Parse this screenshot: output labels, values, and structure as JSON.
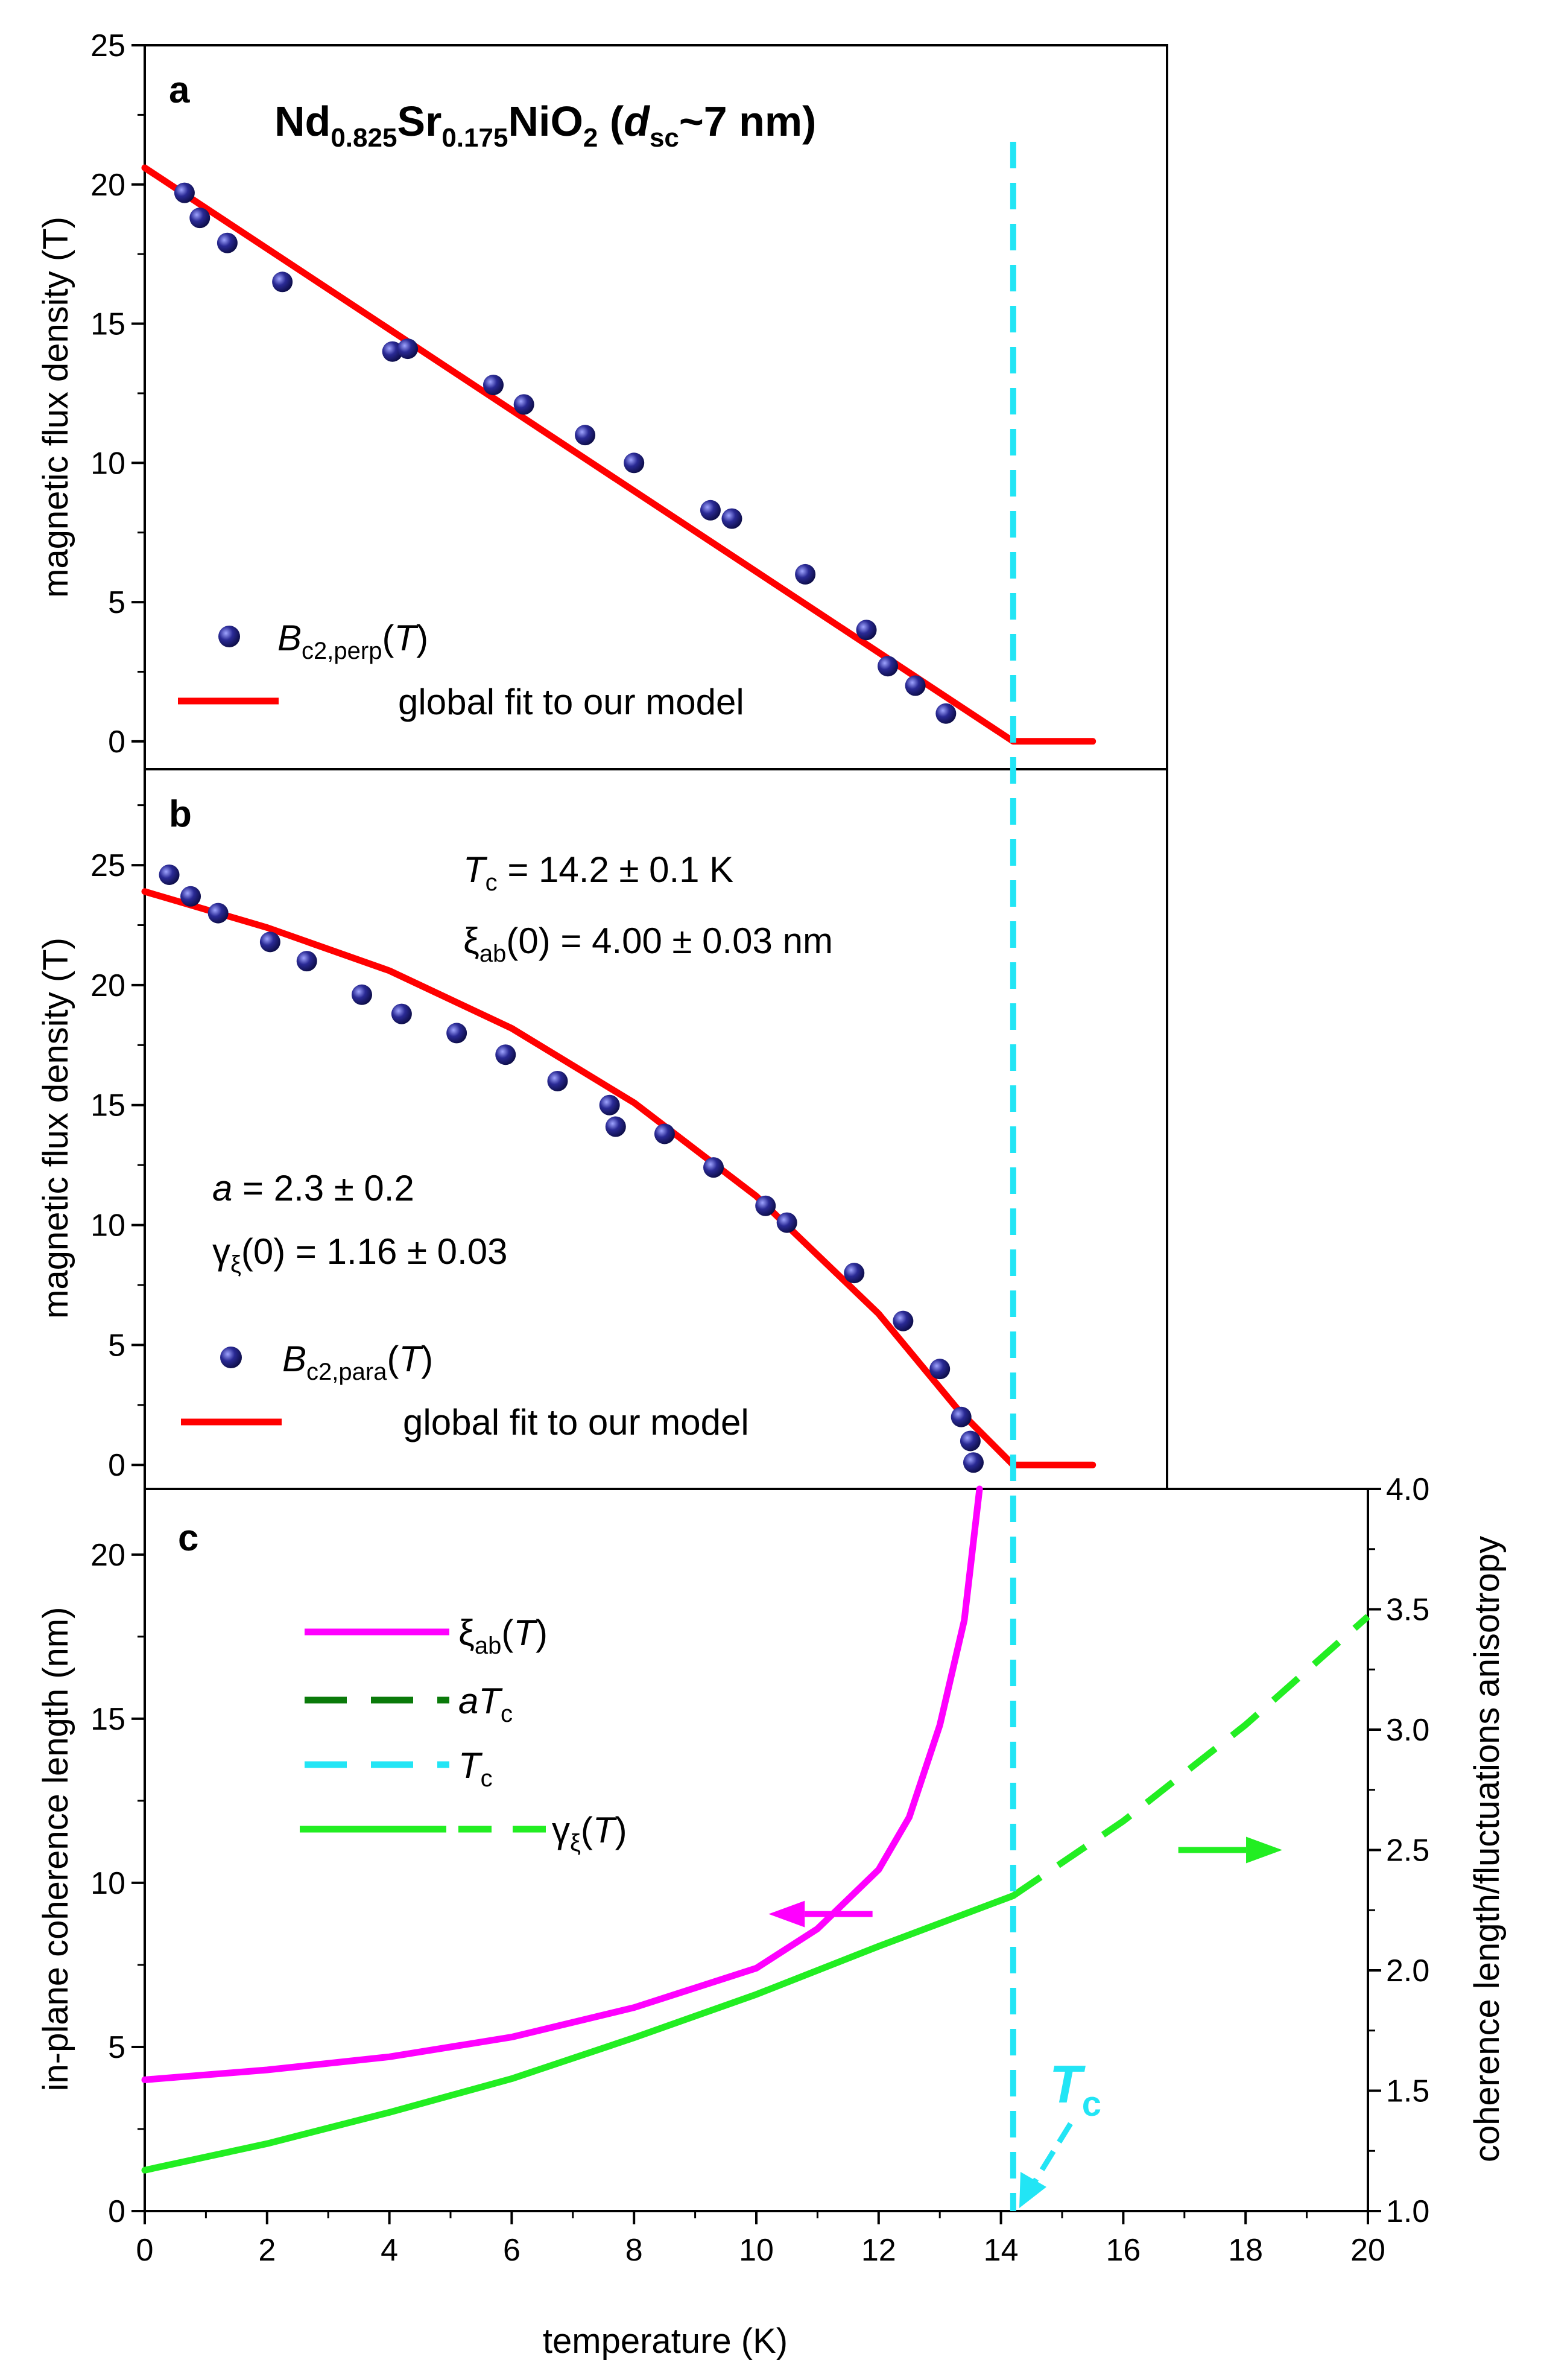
{
  "chart_data": [
    {
      "type": "scatter",
      "panel_label": "a",
      "title": {
        "main": "Nd",
        "s1": "0.825",
        "sr": "Sr",
        "s2": "0.175",
        "nio": "NiO",
        "s3": "2",
        "open": " (",
        "d": "d",
        "dsub": "sc",
        "rest": "~7 nm)"
      },
      "ylabel": "magnetic flux density (T)",
      "xlim": [
        0,
        20
      ],
      "ylim": [
        -1,
        25
      ],
      "yticks": [
        0,
        5,
        10,
        15,
        20,
        25
      ],
      "legend": [
        {
          "label": "B",
          "sub": "c2,perp",
          "suffix_open": "(",
          "var": "T",
          "suffix_close": ")",
          "kind": "marker"
        },
        {
          "label": "global fit to our model",
          "kind": "line"
        }
      ],
      "points": [
        [
          0.65,
          19.7
        ],
        [
          0.9,
          18.8
        ],
        [
          1.35,
          17.9
        ],
        [
          2.25,
          16.5
        ],
        [
          4.05,
          14.0
        ],
        [
          4.3,
          14.1
        ],
        [
          5.7,
          12.8
        ],
        [
          6.2,
          12.1
        ],
        [
          7.2,
          11.0
        ],
        [
          8.0,
          10.0
        ],
        [
          9.25,
          8.3
        ],
        [
          9.6,
          8.0
        ],
        [
          10.8,
          6.0
        ],
        [
          11.8,
          4.0
        ],
        [
          12.15,
          2.7
        ],
        [
          12.6,
          2.0
        ],
        [
          13.1,
          1.0
        ]
      ],
      "fit": [
        [
          0,
          20.6
        ],
        [
          14.2,
          0
        ],
        [
          15.5,
          0
        ]
      ]
    },
    {
      "type": "scatter",
      "panel_label": "b",
      "ylabel": "magnetic flux density (T)",
      "xlim": [
        0,
        20
      ],
      "ylim": [
        -1,
        29
      ],
      "yticks": [
        0,
        5,
        10,
        15,
        20,
        25
      ],
      "annotations": {
        "tc": {
          "sym": "T",
          "sub": "c",
          "text": " = 14.2 ± 0.1 K"
        },
        "xi": {
          "sym": "ξ",
          "sub": "ab",
          "text": "(0) = 4.00 ±  0.03 nm"
        },
        "a": {
          "sym": "a",
          "text": " = 2.3 ± 0.2"
        },
        "gamma": {
          "sym": "γ",
          "sub": "ξ",
          "text": "(0) = 1.16 ± 0.03"
        }
      },
      "legend": [
        {
          "label": "B",
          "sub": "c2,para",
          "suffix_open": "(",
          "var": "T",
          "suffix_close": ")",
          "kind": "marker"
        },
        {
          "label": "global fit to our model",
          "kind": "line"
        }
      ],
      "points": [
        [
          0.4,
          24.6
        ],
        [
          0.75,
          23.7
        ],
        [
          1.2,
          23.0
        ],
        [
          2.05,
          21.8
        ],
        [
          2.65,
          21.0
        ],
        [
          3.55,
          19.6
        ],
        [
          4.2,
          18.8
        ],
        [
          5.1,
          18.0
        ],
        [
          5.9,
          17.1
        ],
        [
          6.75,
          16.0
        ],
        [
          7.6,
          15.0
        ],
        [
          7.7,
          14.1
        ],
        [
          8.5,
          13.8
        ],
        [
          9.3,
          12.4
        ],
        [
          10.15,
          10.8
        ],
        [
          10.5,
          10.1
        ],
        [
          11.6,
          8.0
        ],
        [
          12.4,
          6.0
        ],
        [
          13.0,
          4.0
        ],
        [
          13.35,
          2.0
        ],
        [
          13.5,
          1.0
        ],
        [
          13.55,
          0.1
        ]
      ],
      "fit": [
        [
          0,
          23.9
        ],
        [
          2,
          22.4
        ],
        [
          4,
          20.6
        ],
        [
          6,
          18.2
        ],
        [
          8,
          15.1
        ],
        [
          10,
          11.2
        ],
        [
          12,
          6.3
        ],
        [
          13.3,
          2.3
        ],
        [
          14.2,
          0
        ],
        [
          15.5,
          0
        ]
      ]
    },
    {
      "type": "line",
      "panel_label": "c",
      "xlabel": "temperature (K)",
      "ylabel_left": "in-plane coherence length (nm)",
      "ylabel_right": "coherence length/fluctuations anisotropy",
      "xlim": [
        0,
        20
      ],
      "ylim_left": [
        0,
        22
      ],
      "ylim_right": [
        1.0,
        4.0
      ],
      "xticks": [
        0,
        2,
        4,
        6,
        8,
        10,
        12,
        14,
        16,
        18,
        20
      ],
      "yticks_left": [
        0,
        5,
        10,
        15,
        20
      ],
      "yticks_right": [
        "1.0",
        "1.5",
        "2.0",
        "2.5",
        "3.0",
        "3.5",
        "4.0"
      ],
      "tc_value": 14.2,
      "tc_label": {
        "sym": "T",
        "sub": "c"
      },
      "legend": [
        {
          "sym": "ξ",
          "sub": "ab",
          "open": "(",
          "var": "T",
          "close": ")",
          "style": "magenta-solid"
        },
        {
          "sym": "a",
          "var": "T",
          "sub": "c",
          "style": "darkgreen-dashed"
        },
        {
          "sym": "T",
          "sub": "c",
          "style": "cyan-dashed"
        },
        {
          "sym": "γ",
          "sub": "ξ",
          "open": "(",
          "var": "T",
          "close": ")",
          "style": "green-solid-dashed"
        }
      ],
      "series": [
        {
          "name": "xi_ab(T)",
          "axis": "left",
          "points": [
            [
              0,
              4.0
            ],
            [
              2,
              4.3
            ],
            [
              4,
              4.7
            ],
            [
              6,
              5.3
            ],
            [
              8,
              6.2
            ],
            [
              10,
              7.4
            ],
            [
              11,
              8.6
            ],
            [
              12,
              10.4
            ],
            [
              12.5,
              12.0
            ],
            [
              13,
              14.8
            ],
            [
              13.4,
              18.0
            ],
            [
              13.65,
              22.0
            ]
          ]
        },
        {
          "name": "gamma_xi(T) solid",
          "axis": "right",
          "points": [
            [
              0,
              1.17
            ],
            [
              2,
              1.28
            ],
            [
              4,
              1.41
            ],
            [
              6,
              1.55
            ],
            [
              8,
              1.72
            ],
            [
              10,
              1.9
            ],
            [
              12,
              2.1
            ],
            [
              14.2,
              2.31
            ]
          ]
        },
        {
          "name": "gamma_xi(T) dashed",
          "axis": "right",
          "points": [
            [
              14.2,
              2.31
            ],
            [
              16,
              2.62
            ],
            [
              18,
              3.02
            ],
            [
              20,
              3.47
            ]
          ]
        }
      ],
      "arrows": [
        {
          "direction": "left",
          "from": [
            11.9,
            9.05
          ],
          "to": [
            10.2,
            9.05
          ],
          "axis": "left"
        },
        {
          "direction": "right",
          "from": [
            16.9,
            2.5
          ],
          "to": [
            18.6,
            2.5
          ],
          "axis": "right"
        }
      ],
      "colors": {
        "magenta": "#ff00ff",
        "green": "#22ee22",
        "darkgreen": "#0a7a0a",
        "cyan": "#22e5f5",
        "red": "#ff0000",
        "navy": "#1b1b78"
      }
    }
  ]
}
